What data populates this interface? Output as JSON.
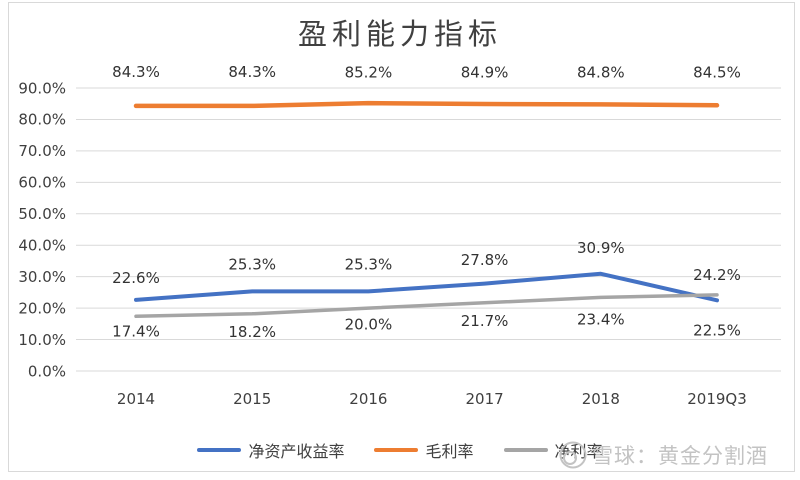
{
  "title": "盈利能力指标",
  "watermark": {
    "text": "雪球：黄金分割酒",
    "logo": "xueqiu-snowball"
  },
  "colors": {
    "background": "#ffffff",
    "border": "#d9d9d9",
    "grid": "#d9d9d9",
    "text": "#404040",
    "watermark": "#c3c3c3",
    "series_blue": "#4472c4",
    "series_orange": "#ed7d31",
    "series_gray": "#a5a5a5"
  },
  "chart_data": {
    "type": "line",
    "title": "盈利能力指标",
    "xlabel": "",
    "ylabel": "",
    "categories": [
      "2014",
      "2015",
      "2016",
      "2017",
      "2018",
      "2019Q3"
    ],
    "series": [
      {
        "name": "净资产收益率",
        "color": "#4472c4",
        "values": [
          22.6,
          25.3,
          25.3,
          27.8,
          30.9,
          22.5
        ],
        "labels": [
          "22.6%",
          "25.3%",
          "25.3%",
          "27.8%",
          "30.9%",
          "22.5%"
        ],
        "label_dy": [
          -22,
          -27,
          -27,
          -24,
          -26,
          30
        ]
      },
      {
        "name": "毛利率",
        "color": "#ed7d31",
        "values": [
          84.3,
          84.3,
          85.2,
          84.9,
          84.8,
          84.5
        ],
        "labels": [
          "84.3%",
          "84.3%",
          "85.2%",
          "84.9%",
          "84.8%",
          "84.5%"
        ],
        "label_dy": [
          -34,
          -34,
          -31,
          -32,
          -32,
          -33
        ]
      },
      {
        "name": "净利率",
        "color": "#a5a5a5",
        "values": [
          17.4,
          18.2,
          20.0,
          21.7,
          23.4,
          24.2
        ],
        "labels": [
          "17.4%",
          "18.2%",
          "20.0%",
          "21.7%",
          "23.4%",
          "24.2%"
        ],
        "label_dy": [
          15,
          18,
          16,
          18,
          22,
          -20
        ]
      }
    ],
    "ylim": [
      0,
      90
    ],
    "ytick_step": 10,
    "ytick_labels": [
      "0.0%",
      "10.0%",
      "20.0%",
      "30.0%",
      "40.0%",
      "50.0%",
      "60.0%",
      "70.0%",
      "80.0%",
      "90.0%"
    ],
    "grid": true,
    "legend_position": "bottom"
  }
}
